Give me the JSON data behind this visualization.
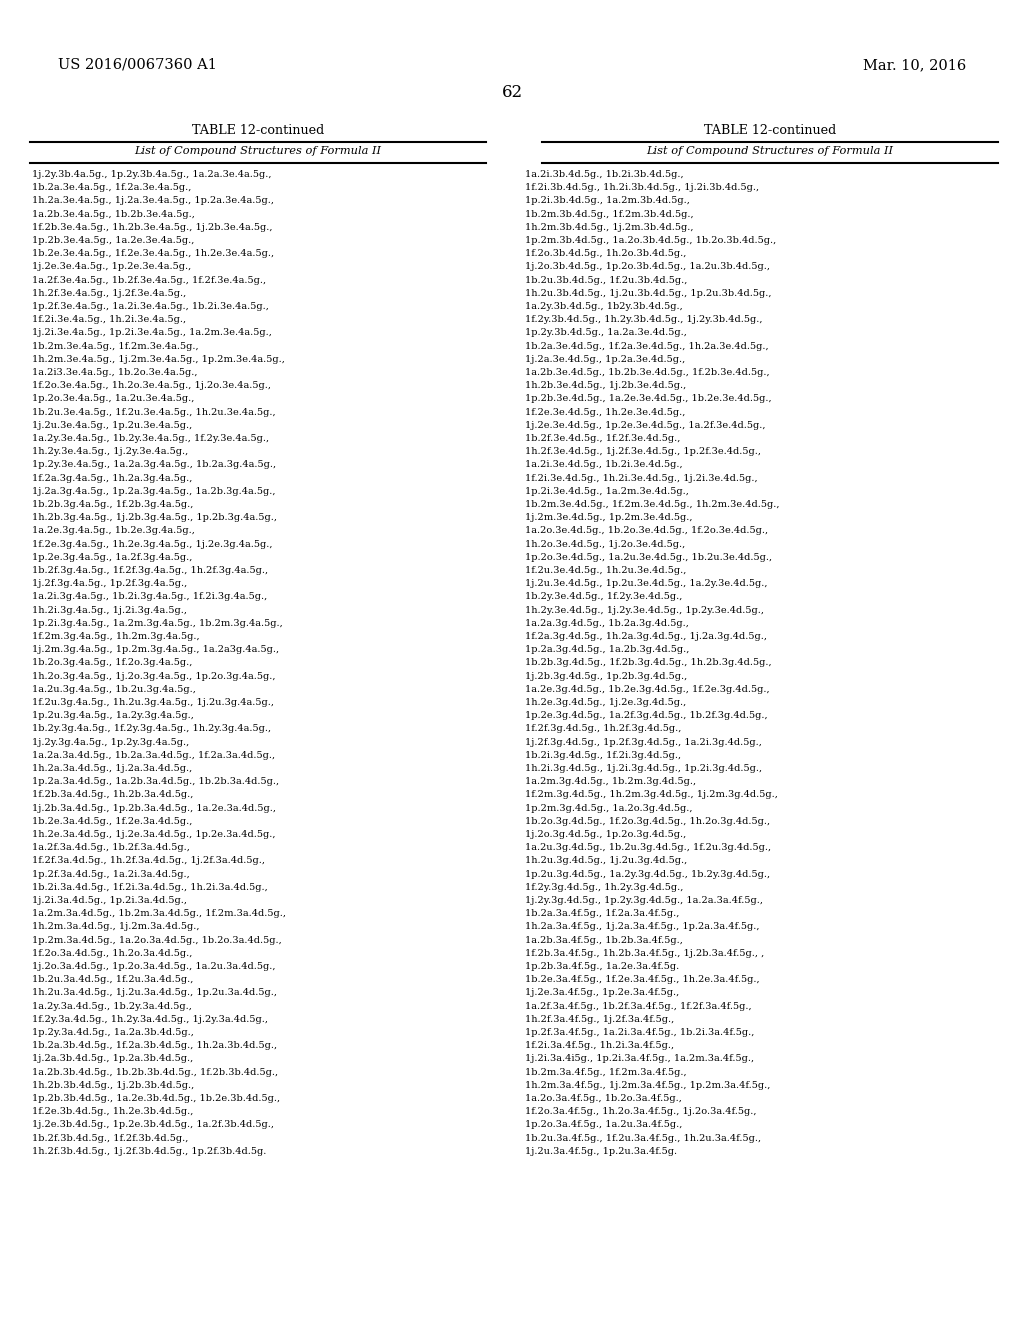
{
  "patent_number": "US 2016/0067360 A1",
  "date": "Mar. 10, 2016",
  "page_number": "62",
  "table_title": "TABLE 12-continued",
  "table_subtitle": "List of Compound Structures of Formula II",
  "left_column_lines": [
    "1j.2y.3b.4a.5g., 1p.2y.3b.4a.5g., 1a.2a.3e.4a.5g.,",
    "1b.2a.3e.4a.5g., 1f.2a.3e.4a.5g.,",
    "1h.2a.3e.4a.5g., 1j.2a.3e.4a.5g., 1p.2a.3e.4a.5g.,",
    "1a.2b.3e.4a.5g., 1b.2b.3e.4a.5g.,",
    "1f.2b.3e.4a.5g., 1h.2b.3e.4a.5g., 1j.2b.3e.4a.5g.,",
    "1p.2b.3e.4a.5g., 1a.2e.3e.4a.5g.,",
    "1b.2e.3e.4a.5g., 1f.2e.3e.4a.5g., 1h.2e.3e.4a.5g.,",
    "1j.2e.3e.4a.5g., 1p.2e.3e.4a.5g.,",
    "1a.2f.3e.4a.5g., 1b.2f.3e.4a.5g., 1f.2f.3e.4a.5g.,",
    "1h.2f.3e.4a.5g., 1j.2f.3e.4a.5g.,",
    "1p.2f.3e.4a.5g., 1a.2i.3e.4a.5g., 1b.2i.3e.4a.5g.,",
    "1f.2i.3e.4a.5g., 1h.2i.3e.4a.5g.,",
    "1j.2i.3e.4a.5g., 1p.2i.3e.4a.5g., 1a.2m.3e.4a.5g.,",
    "1b.2m.3e.4a.5g., 1f.2m.3e.4a.5g.,",
    "1h.2m.3e.4a.5g., 1j.2m.3e.4a.5g., 1p.2m.3e.4a.5g.,",
    "1a.2i3.3e.4a.5g., 1b.2o.3e.4a.5g.,",
    "1f.2o.3e.4a.5g., 1h.2o.3e.4a.5g., 1j.2o.3e.4a.5g.,",
    "1p.2o.3e.4a.5g., 1a.2u.3e.4a.5g.,",
    "1b.2u.3e.4a.5g., 1f.2u.3e.4a.5g., 1h.2u.3e.4a.5g.,",
    "1j.2u.3e.4a.5g., 1p.2u.3e.4a.5g.,",
    "1a.2y.3e.4a.5g., 1b.2y.3e.4a.5g., 1f.2y.3e.4a.5g.,",
    "1h.2y.3e.4a.5g., 1j.2y.3e.4a.5g.,",
    "1p.2y.3e.4a.5g., 1a.2a.3g.4a.5g., 1b.2a.3g.4a.5g.,",
    "1f.2a.3g.4a.5g., 1h.2a.3g.4a.5g.,",
    "1j.2a.3g.4a.5g., 1p.2a.3g.4a.5g., 1a.2b.3g.4a.5g.,",
    "1b.2b.3g.4a.5g., 1f.2b.3g.4a.5g.,",
    "1h.2b.3g.4a.5g., 1j.2b.3g.4a.5g., 1p.2b.3g.4a.5g.,",
    "1a.2e.3g.4a.5g., 1b.2e.3g.4a.5g.,",
    "1f.2e.3g.4a.5g., 1h.2e.3g.4a.5g., 1j.2e.3g.4a.5g.,",
    "1p.2e.3g.4a.5g., 1a.2f.3g.4a.5g.,",
    "1b.2f.3g.4a.5g., 1f.2f.3g.4a.5g., 1h.2f.3g.4a.5g.,",
    "1j.2f.3g.4a.5g., 1p.2f.3g.4a.5g.,",
    "1a.2i.3g.4a.5g., 1b.2i.3g.4a.5g., 1f.2i.3g.4a.5g.,",
    "1h.2i.3g.4a.5g., 1j.2i.3g.4a.5g.,",
    "1p.2i.3g.4a.5g., 1a.2m.3g.4a.5g., 1b.2m.3g.4a.5g.,",
    "1f.2m.3g.4a.5g., 1h.2m.3g.4a.5g.,",
    "1j.2m.3g.4a.5g., 1p.2m.3g.4a.5g., 1a.2a3g.4a.5g.,",
    "1b.2o.3g.4a.5g., 1f.2o.3g.4a.5g.,",
    "1h.2o.3g.4a.5g., 1j.2o.3g.4a.5g., 1p.2o.3g.4a.5g.,",
    "1a.2u.3g.4a.5g., 1b.2u.3g.4a.5g.,",
    "1f.2u.3g.4a.5g., 1h.2u.3g.4a.5g., 1j.2u.3g.4a.5g.,",
    "1p.2u.3g.4a.5g., 1a.2y.3g.4a.5g.,",
    "1b.2y.3g.4a.5g., 1f.2y.3g.4a.5g., 1h.2y.3g.4a.5g.,",
    "1j.2y.3g.4a.5g., 1p.2y.3g.4a.5g.,",
    "1a.2a.3a.4d.5g., 1b.2a.3a.4d.5g., 1f.2a.3a.4d.5g.,",
    "1h.2a.3a.4d.5g., 1j.2a.3a.4d.5g.,",
    "1p.2a.3a.4d.5g., 1a.2b.3a.4d.5g., 1b.2b.3a.4d.5g.,",
    "1f.2b.3a.4d.5g., 1h.2b.3a.4d.5g.,",
    "1j.2b.3a.4d.5g., 1p.2b.3a.4d.5g., 1a.2e.3a.4d.5g.,",
    "1b.2e.3a.4d.5g., 1f.2e.3a.4d.5g.,",
    "1h.2e.3a.4d.5g., 1j.2e.3a.4d.5g., 1p.2e.3a.4d.5g.,",
    "1a.2f.3a.4d.5g., 1b.2f.3a.4d.5g.,",
    "1f.2f.3a.4d.5g., 1h.2f.3a.4d.5g., 1j.2f.3a.4d.5g.,",
    "1p.2f.3a.4d.5g., 1a.2i.3a.4d.5g.,",
    "1b.2i.3a.4d.5g., 1f.2i.3a.4d.5g., 1h.2i.3a.4d.5g.,",
    "1j.2i.3a.4d.5g., 1p.2i.3a.4d.5g.,",
    "1a.2m.3a.4d.5g., 1b.2m.3a.4d.5g., 1f.2m.3a.4d.5g.,",
    "1h.2m.3a.4d.5g., 1j.2m.3a.4d.5g.,",
    "1p.2m.3a.4d.5g., 1a.2o.3a.4d.5g., 1b.2o.3a.4d.5g.,",
    "1f.2o.3a.4d.5g., 1h.2o.3a.4d.5g.,",
    "1j.2o.3a.4d.5g., 1p.2o.3a.4d.5g., 1a.2u.3a.4d.5g.,",
    "1b.2u.3a.4d.5g., 1f.2u.3a.4d.5g.,",
    "1h.2u.3a.4d.5g., 1j.2u.3a.4d.5g., 1p.2u.3a.4d.5g.,",
    "1a.2y.3a.4d.5g., 1b.2y.3a.4d.5g.,",
    "1f.2y.3a.4d.5g., 1h.2y.3a.4d.5g., 1j.2y.3a.4d.5g.,",
    "1p.2y.3a.4d.5g., 1a.2a.3b.4d.5g.,",
    "1b.2a.3b.4d.5g., 1f.2a.3b.4d.5g., 1h.2a.3b.4d.5g.,",
    "1j.2a.3b.4d.5g., 1p.2a.3b.4d.5g.,",
    "1a.2b.3b.4d.5g., 1b.2b.3b.4d.5g., 1f.2b.3b.4d.5g.,",
    "1h.2b.3b.4d.5g., 1j.2b.3b.4d.5g.,",
    "1p.2b.3b.4d.5g., 1a.2e.3b.4d.5g., 1b.2e.3b.4d.5g.,",
    "1f.2e.3b.4d.5g., 1h.2e.3b.4d.5g.,",
    "1j.2e.3b.4d.5g., 1p.2e.3b.4d.5g., 1a.2f.3b.4d.5g.,",
    "1b.2f.3b.4d.5g., 1f.2f.3b.4d.5g.,",
    "1h.2f.3b.4d.5g., 1j.2f.3b.4d.5g., 1p.2f.3b.4d.5g."
  ],
  "right_column_lines": [
    "1a.2i.3b.4d.5g., 1b.2i.3b.4d.5g.,",
    "1f.2i.3b.4d.5g., 1h.2i.3b.4d.5g., 1j.2i.3b.4d.5g.,",
    "1p.2i.3b.4d.5g., 1a.2m.3b.4d.5g.,",
    "1b.2m.3b.4d.5g., 1f.2m.3b.4d.5g.,",
    "1h.2m.3b.4d.5g., 1j.2m.3b.4d.5g.,",
    "1p.2m.3b.4d.5g., 1a.2o.3b.4d.5g., 1b.2o.3b.4d.5g.,",
    "1f.2o.3b.4d.5g., 1h.2o.3b.4d.5g.,",
    "1j.2o.3b.4d.5g., 1p.2o.3b.4d.5g., 1a.2u.3b.4d.5g.,",
    "1b.2u.3b.4d.5g., 1f.2u.3b.4d.5g.,",
    "1h.2u.3b.4d.5g., 1j.2u.3b.4d.5g., 1p.2u.3b.4d.5g.,",
    "1a.2y.3b.4d.5g., 1b2y.3b.4d.5g.,",
    "1f.2y.3b.4d.5g., 1h.2y.3b.4d.5g., 1j.2y.3b.4d.5g.,",
    "1p.2y.3b.4d.5g., 1a.2a.3e.4d.5g.,",
    "1b.2a.3e.4d.5g., 1f.2a.3e.4d.5g., 1h.2a.3e.4d.5g.,",
    "1j.2a.3e.4d.5g., 1p.2a.3e.4d.5g.,",
    "1a.2b.3e.4d.5g., 1b.2b.3e.4d.5g., 1f.2b.3e.4d.5g.,",
    "1h.2b.3e.4d.5g., 1j.2b.3e.4d.5g.,",
    "1p.2b.3e.4d.5g., 1a.2e.3e.4d.5g., 1b.2e.3e.4d.5g.,",
    "1f.2e.3e.4d.5g., 1h.2e.3e.4d.5g.,",
    "1j.2e.3e.4d.5g., 1p.2e.3e.4d.5g., 1a.2f.3e.4d.5g.,",
    "1b.2f.3e.4d.5g., 1f.2f.3e.4d.5g.,",
    "1h.2f.3e.4d.5g., 1j.2f.3e.4d.5g., 1p.2f.3e.4d.5g.,",
    "1a.2i.3e.4d.5g., 1b.2i.3e.4d.5g.,",
    "1f.2i.3e.4d.5g., 1h.2i.3e.4d.5g., 1j.2i.3e.4d.5g.,",
    "1p.2i.3e.4d.5g., 1a.2m.3e.4d.5g.,",
    "1b.2m.3e.4d.5g., 1f.2m.3e.4d.5g., 1h.2m.3e.4d.5g.,",
    "1j.2m.3e.4d.5g., 1p.2m.3e.4d.5g.,",
    "1a.2o.3e.4d.5g., 1b.2o.3e.4d.5g., 1f.2o.3e.4d.5g.,",
    "1h.2o.3e.4d.5g., 1j.2o.3e.4d.5g.,",
    "1p.2o.3e.4d.5g., 1a.2u.3e.4d.5g., 1b.2u.3e.4d.5g.,",
    "1f.2u.3e.4d.5g., 1h.2u.3e.4d.5g.,",
    "1j.2u.3e.4d.5g., 1p.2u.3e.4d.5g., 1a.2y.3e.4d.5g.,",
    "1b.2y.3e.4d.5g., 1f.2y.3e.4d.5g.,",
    "1h.2y.3e.4d.5g., 1j.2y.3e.4d.5g., 1p.2y.3e.4d.5g.,",
    "1a.2a.3g.4d.5g., 1b.2a.3g.4d.5g.,",
    "1f.2a.3g.4d.5g., 1h.2a.3g.4d.5g., 1j.2a.3g.4d.5g.,",
    "1p.2a.3g.4d.5g., 1a.2b.3g.4d.5g.,",
    "1b.2b.3g.4d.5g., 1f.2b.3g.4d.5g., 1h.2b.3g.4d.5g.,",
    "1j.2b.3g.4d.5g., 1p.2b.3g.4d.5g.,",
    "1a.2e.3g.4d.5g., 1b.2e.3g.4d.5g., 1f.2e.3g.4d.5g.,",
    "1h.2e.3g.4d.5g., 1j.2e.3g.4d.5g.,",
    "1p.2e.3g.4d.5g., 1a.2f.3g.4d.5g., 1b.2f.3g.4d.5g.,",
    "1f.2f.3g.4d.5g., 1h.2f.3g.4d.5g.,",
    "1j.2f.3g.4d.5g., 1p.2f.3g.4d.5g., 1a.2i.3g.4d.5g.,",
    "1b.2i.3g.4d.5g., 1f.2i.3g.4d.5g.,",
    "1h.2i.3g.4d.5g., 1j.2i.3g.4d.5g., 1p.2i.3g.4d.5g.,",
    "1a.2m.3g.4d.5g., 1b.2m.3g.4d.5g.,",
    "1f.2m.3g.4d.5g., 1h.2m.3g.4d.5g., 1j.2m.3g.4d.5g.,",
    "1p.2m.3g.4d.5g., 1a.2o.3g.4d.5g.,",
    "1b.2o.3g.4d.5g., 1f.2o.3g.4d.5g., 1h.2o.3g.4d.5g.,",
    "1j.2o.3g.4d.5g., 1p.2o.3g.4d.5g.,",
    "1a.2u.3g.4d.5g., 1b.2u.3g.4d.5g., 1f.2u.3g.4d.5g.,",
    "1h.2u.3g.4d.5g., 1j.2u.3g.4d.5g.,",
    "1p.2u.3g.4d.5g., 1a.2y.3g.4d.5g., 1b.2y.3g.4d.5g.,",
    "1f.2y.3g.4d.5g., 1h.2y.3g.4d.5g.,",
    "1j.2y.3g.4d.5g., 1p.2y.3g.4d.5g., 1a.2a.3a.4f.5g.,",
    "1b.2a.3a.4f.5g., 1f.2a.3a.4f.5g.,",
    "1h.2a.3a.4f.5g., 1j.2a.3a.4f.5g., 1p.2a.3a.4f.5g.,",
    "1a.2b.3a.4f.5g., 1b.2b.3a.4f.5g.,",
    "1f.2b.3a.4f.5g., 1h.2b.3a.4f.5g., 1j.2b.3a.4f.5g., ,",
    "1p.2b.3a.4f.5g., 1a.2e.3a.4f.5g.",
    "1b.2e.3a.4f.5g., 1f.2e.3a.4f.5g., 1h.2e.3a.4f.5g.,",
    "1j.2e.3a.4f.5g., 1p.2e.3a.4f.5g.,",
    "1a.2f.3a.4f.5g., 1b.2f.3a.4f.5g., 1f.2f.3a.4f.5g.,",
    "1h.2f.3a.4f.5g., 1j.2f.3a.4f.5g.,",
    "1p.2f.3a.4f.5g., 1a.2i.3a.4f.5g., 1b.2i.3a.4f.5g.,",
    "1f.2i.3a.4f.5g., 1h.2i.3a.4f.5g.,",
    "1j.2i.3a.4i5g., 1p.2i.3a.4f.5g., 1a.2m.3a.4f.5g.,",
    "1b.2m.3a.4f.5g., 1f.2m.3a.4f.5g.,",
    "1h.2m.3a.4f.5g., 1j.2m.3a.4f.5g., 1p.2m.3a.4f.5g.,",
    "1a.2o.3a.4f.5g., 1b.2o.3a.4f.5g.,",
    "1f.2o.3a.4f.5g., 1h.2o.3a.4f.5g., 1j.2o.3a.4f.5g.,",
    "1p.2o.3a.4f.5g., 1a.2u.3a.4f.5g.,",
    "1b.2u.3a.4f.5g., 1f.2u.3a.4f.5g., 1h.2u.3a.4f.5g.,",
    "1j.2u.3a.4f.5g., 1p.2u.3a.4f.5g."
  ],
  "bg_color": "#ffffff",
  "text_color": "#000000"
}
